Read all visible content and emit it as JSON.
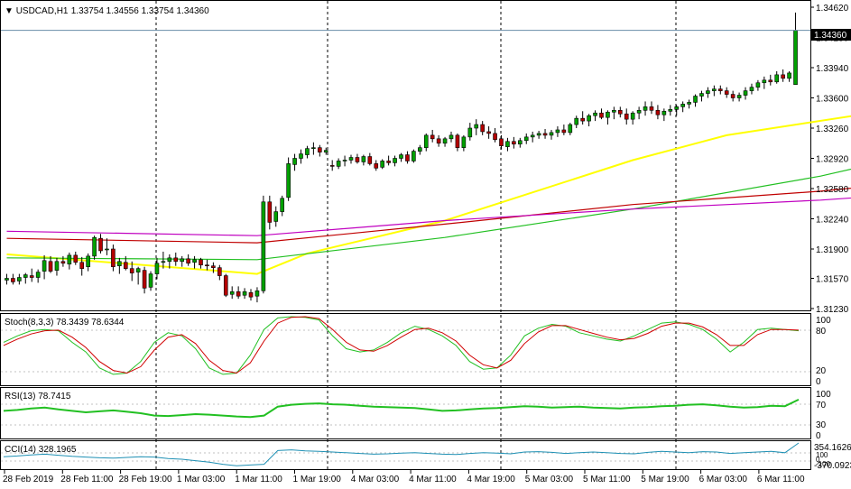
{
  "header": {
    "symbol": "USDCAD,H1",
    "ohlc": "1.33754 1.34556 1.33754 1.34360"
  },
  "price_axis": {
    "ticks": [
      "1.34620",
      "1.34280",
      "1.33940",
      "1.33600",
      "1.33260",
      "1.32920",
      "1.32580",
      "1.32240",
      "1.31900",
      "1.31570",
      "1.31230"
    ],
    "current_price_label": "1.34360"
  },
  "panels": {
    "stoch": {
      "title": "Stoch(8,3,3) 78.3439 78.6344",
      "levels": [
        "100",
        "80",
        "20",
        "0"
      ]
    },
    "rsi": {
      "title": "RSI(13) 78.7415",
      "levels": [
        "100",
        "70",
        "30",
        "0"
      ]
    },
    "cci": {
      "title": "CCI(14) 328.1965",
      "levels": [
        "354.1626",
        "100",
        "0",
        "-100",
        "-370.0923"
      ]
    }
  },
  "time_axis": {
    "labels": [
      "28 Feb 2019",
      "28 Feb 11:00",
      "28 Feb 19:00",
      "1 Mar 03:00",
      "1 Mar 11:00",
      "1 Mar 19:00",
      "4 Mar 03:00",
      "4 Mar 11:00",
      "4 Mar 19:00",
      "5 Mar 03:00",
      "5 Mar 11:00",
      "5 Mar 19:00",
      "6 Mar 03:00",
      "6 Mar 11:00"
    ]
  },
  "colors": {
    "bull": "#00a000",
    "bear": "#b40000",
    "ma_fast": "#ffff00",
    "ma_green": "#22c022",
    "ma_red": "#c00000",
    "ma_magenta": "#c000c0",
    "stoch_main": "#22c022",
    "stoch_signal": "#d00000",
    "rsi_line": "#22c022",
    "cci_line": "#1e90b4"
  },
  "chart_data": {
    "type": "candlestick",
    "timeframe": "H1",
    "y_range": [
      1.3123,
      1.3462
    ],
    "current_price": 1.3436,
    "candles": [
      [
        1.3155,
        1.3162,
        1.315,
        1.3157
      ],
      [
        1.3157,
        1.3162,
        1.315,
        1.3153
      ],
      [
        1.3154,
        1.3162,
        1.315,
        1.3158
      ],
      [
        1.3158,
        1.3163,
        1.3151,
        1.3161
      ],
      [
        1.316,
        1.3168,
        1.3153,
        1.3158
      ],
      [
        1.3158,
        1.3167,
        1.3152,
        1.3164
      ],
      [
        1.3165,
        1.3183,
        1.3156,
        1.3177
      ],
      [
        1.3176,
        1.3182,
        1.3163,
        1.3165
      ],
      [
        1.3166,
        1.318,
        1.316,
        1.3176
      ],
      [
        1.3176,
        1.3182,
        1.317,
        1.3174
      ],
      [
        1.3173,
        1.3186,
        1.3167,
        1.3183
      ],
      [
        1.3183,
        1.3187,
        1.3172,
        1.3175
      ],
      [
        1.3175,
        1.3181,
        1.316,
        1.3168
      ],
      [
        1.317,
        1.3185,
        1.3165,
        1.3182
      ],
      [
        1.3182,
        1.3205,
        1.3178,
        1.3203
      ],
      [
        1.3202,
        1.3207,
        1.3185,
        1.3188
      ],
      [
        1.3189,
        1.3202,
        1.3183,
        1.319
      ],
      [
        1.319,
        1.3195,
        1.3165,
        1.317
      ],
      [
        1.3171,
        1.318,
        1.3162,
        1.3176
      ],
      [
        1.3175,
        1.3182,
        1.3166,
        1.3168
      ],
      [
        1.3168,
        1.3176,
        1.3154,
        1.3163
      ],
      [
        1.3164,
        1.317,
        1.315,
        1.3168
      ],
      [
        1.3166,
        1.317,
        1.314,
        1.3146
      ],
      [
        1.3147,
        1.3165,
        1.3143,
        1.3162
      ],
      [
        1.3162,
        1.318,
        1.3156,
        1.3174
      ],
      [
        1.3175,
        1.3187,
        1.3168,
        1.3176
      ],
      [
        1.3176,
        1.3184,
        1.3168,
        1.318
      ],
      [
        1.318,
        1.3186,
        1.3171,
        1.3176
      ],
      [
        1.3176,
        1.3182,
        1.317,
        1.3179
      ],
      [
        1.3179,
        1.3184,
        1.3171,
        1.3174
      ],
      [
        1.3175,
        1.3182,
        1.3168,
        1.3178
      ],
      [
        1.3178,
        1.318,
        1.3168,
        1.3172
      ],
      [
        1.3172,
        1.3178,
        1.3166,
        1.3171
      ],
      [
        1.3171,
        1.3175,
        1.3163,
        1.3169
      ],
      [
        1.3169,
        1.3172,
        1.3155,
        1.316
      ],
      [
        1.316,
        1.3162,
        1.3136,
        1.3138
      ],
      [
        1.3139,
        1.3148,
        1.3134,
        1.3142
      ],
      [
        1.3142,
        1.3148,
        1.3134,
        1.3137
      ],
      [
        1.3138,
        1.3146,
        1.3134,
        1.3142
      ],
      [
        1.3141,
        1.3145,
        1.3132,
        1.3136
      ],
      [
        1.3137,
        1.3147,
        1.313,
        1.3143
      ],
      [
        1.3143,
        1.325,
        1.314,
        1.3243
      ],
      [
        1.3243,
        1.325,
        1.3212,
        1.322
      ],
      [
        1.3221,
        1.3238,
        1.3215,
        1.3232
      ],
      [
        1.3232,
        1.325,
        1.3227,
        1.3247
      ],
      [
        1.3248,
        1.3293,
        1.3244,
        1.3286
      ],
      [
        1.3285,
        1.3297,
        1.3278,
        1.3292
      ],
      [
        1.3292,
        1.3302,
        1.3286,
        1.3297
      ],
      [
        1.3296,
        1.3306,
        1.3292,
        1.3303
      ],
      [
        1.3303,
        1.331,
        1.3296,
        1.3304
      ],
      [
        1.3304,
        1.3307,
        1.3294,
        1.3299
      ],
      [
        1.3299,
        1.3304,
        1.3296,
        1.3301
      ],
      [
        1.3284,
        1.329,
        1.3278,
        1.3283
      ],
      [
        1.3283,
        1.3292,
        1.328,
        1.3289
      ],
      [
        1.3289,
        1.3295,
        1.3283,
        1.329
      ],
      [
        1.329,
        1.3296,
        1.3286,
        1.3293
      ],
      [
        1.3293,
        1.3297,
        1.3286,
        1.3288
      ],
      [
        1.3288,
        1.3296,
        1.3284,
        1.3294
      ],
      [
        1.3294,
        1.3298,
        1.3284,
        1.3286
      ],
      [
        1.3286,
        1.329,
        1.3278,
        1.3281
      ],
      [
        1.3282,
        1.3291,
        1.328,
        1.3289
      ],
      [
        1.3289,
        1.3295,
        1.3284,
        1.3287
      ],
      [
        1.3287,
        1.3295,
        1.3283,
        1.3292
      ],
      [
        1.3292,
        1.3298,
        1.3288,
        1.3296
      ],
      [
        1.3296,
        1.33,
        1.3286,
        1.3289
      ],
      [
        1.3289,
        1.3302,
        1.3287,
        1.33
      ],
      [
        1.33,
        1.3307,
        1.3296,
        1.3304
      ],
      [
        1.3304,
        1.332,
        1.33,
        1.3318
      ],
      [
        1.3318,
        1.3324,
        1.331,
        1.3314
      ],
      [
        1.3314,
        1.3318,
        1.3305,
        1.3309
      ],
      [
        1.3309,
        1.3316,
        1.3305,
        1.3314
      ],
      [
        1.3314,
        1.3322,
        1.331,
        1.3318
      ],
      [
        1.3318,
        1.332,
        1.33,
        1.3304
      ],
      [
        1.3304,
        1.3318,
        1.33,
        1.3316
      ],
      [
        1.3316,
        1.3332,
        1.3312,
        1.3326
      ],
      [
        1.3326,
        1.3336,
        1.3318,
        1.333
      ],
      [
        1.333,
        1.3334,
        1.3318,
        1.3322
      ],
      [
        1.3322,
        1.3328,
        1.3314,
        1.332
      ],
      [
        1.332,
        1.3326,
        1.331,
        1.3313
      ],
      [
        1.3314,
        1.3318,
        1.3302,
        1.3306
      ],
      [
        1.3305,
        1.3315,
        1.33,
        1.3311
      ],
      [
        1.3311,
        1.3316,
        1.3303,
        1.3308
      ],
      [
        1.3308,
        1.3315,
        1.3304,
        1.3312
      ],
      [
        1.3312,
        1.332,
        1.3308,
        1.3316
      ],
      [
        1.3316,
        1.3322,
        1.331,
        1.3318
      ],
      [
        1.3318,
        1.3323,
        1.3314,
        1.332
      ],
      [
        1.332,
        1.3325,
        1.3314,
        1.3318
      ],
      [
        1.3318,
        1.3324,
        1.3313,
        1.3321
      ],
      [
        1.3321,
        1.3328,
        1.3316,
        1.3324
      ],
      [
        1.3324,
        1.333,
        1.3318,
        1.3321
      ],
      [
        1.3321,
        1.3332,
        1.3318,
        1.333
      ],
      [
        1.333,
        1.334,
        1.3326,
        1.3337
      ],
      [
        1.3337,
        1.3345,
        1.333,
        1.3334
      ],
      [
        1.3334,
        1.3342,
        1.3328,
        1.334
      ],
      [
        1.334,
        1.3346,
        1.3334,
        1.3343
      ],
      [
        1.3343,
        1.3348,
        1.3336,
        1.3338
      ],
      [
        1.3338,
        1.3346,
        1.333,
        1.3344
      ],
      [
        1.3344,
        1.335,
        1.3336,
        1.3346
      ],
      [
        1.3346,
        1.335,
        1.3338,
        1.3342
      ],
      [
        1.3342,
        1.3348,
        1.333,
        1.3336
      ],
      [
        1.3336,
        1.3345,
        1.333,
        1.3343
      ],
      [
        1.3343,
        1.335,
        1.3336,
        1.3346
      ],
      [
        1.3346,
        1.3356,
        1.334,
        1.335
      ],
      [
        1.335,
        1.3356,
        1.3342,
        1.3346
      ],
      [
        1.3346,
        1.3352,
        1.3336,
        1.3341
      ],
      [
        1.3341,
        1.3348,
        1.3334,
        1.3345
      ],
      [
        1.3345,
        1.3352,
        1.334,
        1.3347
      ],
      [
        1.3347,
        1.3352,
        1.334,
        1.335
      ],
      [
        1.335,
        1.3356,
        1.3344,
        1.3353
      ],
      [
        1.3353,
        1.3358,
        1.3348,
        1.3355
      ],
      [
        1.3355,
        1.3364,
        1.335,
        1.3362
      ],
      [
        1.3362,
        1.3368,
        1.3356,
        1.3365
      ],
      [
        1.3365,
        1.3372,
        1.336,
        1.3368
      ],
      [
        1.3368,
        1.3374,
        1.3362,
        1.337
      ],
      [
        1.337,
        1.3374,
        1.3364,
        1.3368
      ],
      [
        1.3368,
        1.3372,
        1.336,
        1.3364
      ],
      [
        1.3364,
        1.3368,
        1.3356,
        1.336
      ],
      [
        1.336,
        1.3366,
        1.3356,
        1.3363
      ],
      [
        1.3363,
        1.3372,
        1.3358,
        1.3368
      ],
      [
        1.3368,
        1.3376,
        1.3364,
        1.3372
      ],
      [
        1.3372,
        1.338,
        1.3368,
        1.3377
      ],
      [
        1.3377,
        1.3384,
        1.337,
        1.338
      ],
      [
        1.338,
        1.3386,
        1.3374,
        1.3378
      ],
      [
        1.3378,
        1.339,
        1.3376,
        1.3386
      ],
      [
        1.3386,
        1.3392,
        1.3378,
        1.3382
      ],
      [
        1.3382,
        1.339,
        1.3378,
        1.3388
      ],
      [
        1.3375,
        1.3456,
        1.3375,
        1.3436
      ]
    ],
    "moving_averages": [
      {
        "color": "yellow",
        "points": [
          [
            0,
            1.3184
          ],
          [
            40,
            1.3162
          ],
          [
            48,
            1.3185
          ],
          [
            70,
            1.3222
          ],
          [
            100,
            1.329
          ],
          [
            115,
            1.3318
          ],
          [
            140,
            1.3345
          ]
        ]
      },
      {
        "color": "green",
        "points": [
          [
            0,
            1.318
          ],
          [
            40,
            1.3178
          ],
          [
            70,
            1.3203
          ],
          [
            100,
            1.3235
          ],
          [
            130,
            1.3272
          ],
          [
            140,
            1.3288
          ]
        ]
      },
      {
        "color": "red",
        "points": [
          [
            0,
            1.3202
          ],
          [
            40,
            1.3197
          ],
          [
            70,
            1.3218
          ],
          [
            100,
            1.324
          ],
          [
            130,
            1.3255
          ],
          [
            140,
            1.3262
          ]
        ]
      },
      {
        "color": "magenta",
        "points": [
          [
            0,
            1.321
          ],
          [
            40,
            1.3205
          ],
          [
            70,
            1.3222
          ],
          [
            100,
            1.3235
          ],
          [
            130,
            1.3245
          ],
          [
            140,
            1.325
          ]
        ]
      }
    ],
    "stoch": {
      "main": [
        60,
        70,
        78,
        80,
        78,
        60,
        45,
        20,
        10,
        12,
        30,
        60,
        75,
        70,
        50,
        20,
        10,
        12,
        40,
        80,
        98,
        100,
        99,
        95,
        70,
        50,
        45,
        48,
        60,
        75,
        85,
        80,
        70,
        55,
        30,
        18,
        20,
        40,
        70,
        82,
        88,
        85,
        75,
        70,
        65,
        62,
        70,
        80,
        90,
        92,
        88,
        80,
        65,
        45,
        60,
        80,
        82,
        80,
        78
      ],
      "signal": [
        55,
        65,
        73,
        78,
        79,
        68,
        52,
        30,
        16,
        12,
        22,
        48,
        68,
        72,
        58,
        32,
        16,
        12,
        28,
        62,
        90,
        99,
        100,
        97,
        80,
        60,
        48,
        46,
        55,
        68,
        80,
        82,
        75,
        62,
        40,
        25,
        20,
        32,
        58,
        76,
        86,
        86,
        80,
        74,
        68,
        64,
        66,
        74,
        85,
        90,
        90,
        84,
        72,
        55,
        55,
        72,
        80,
        80,
        79
      ]
    },
    "rsi": [
      55,
      57,
      60,
      62,
      58,
      55,
      52,
      54,
      56,
      53,
      50,
      45,
      44,
      46,
      48,
      47,
      45,
      43,
      42,
      45,
      64,
      68,
      70,
      71,
      69,
      68,
      66,
      64,
      63,
      62,
      61,
      58,
      55,
      56,
      58,
      60,
      61,
      63,
      65,
      64,
      62,
      63,
      64,
      62,
      61,
      60,
      62,
      63,
      65,
      66,
      68,
      69,
      67,
      64,
      62,
      63,
      66,
      65,
      79
    ],
    "cci": [
      -50,
      -30,
      0,
      20,
      -10,
      -40,
      -60,
      -80,
      -90,
      -70,
      -50,
      -60,
      -100,
      -120,
      -160,
      -200,
      -260,
      -300,
      -280,
      -260,
      120,
      140,
      110,
      100,
      80,
      60,
      40,
      20,
      30,
      50,
      60,
      40,
      20,
      10,
      40,
      60,
      50,
      30,
      80,
      90,
      70,
      40,
      60,
      80,
      60,
      40,
      30,
      70,
      100,
      80,
      60,
      90,
      80,
      40,
      60,
      80,
      100,
      60,
      328
    ]
  }
}
